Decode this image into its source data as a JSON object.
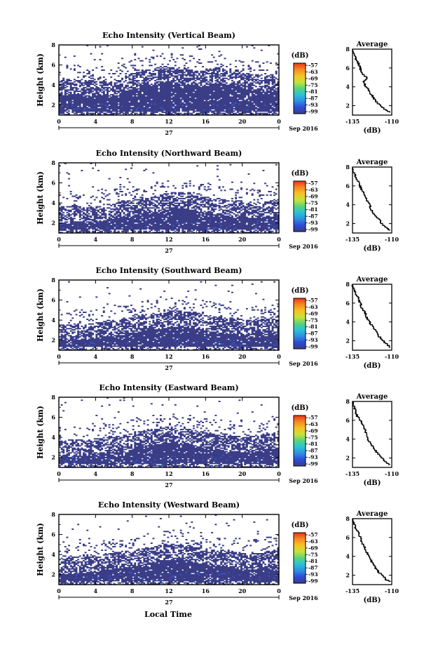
{
  "figure": {
    "xlabel": "Local Time",
    "date_label": "Sep 2016",
    "day_label": "27",
    "ylabel": "Height (km)",
    "colorbar_unit": "(dB)",
    "avg_title": "Average",
    "avg_xlabel": "(dB)"
  },
  "colorbar": {
    "labels": [
      "-57",
      "-63",
      "-69",
      "-75",
      "-81",
      "-87",
      "-93",
      "-99"
    ],
    "colors": [
      "#e8341c",
      "#f58a22",
      "#f6c324",
      "#c8e23a",
      "#5bd37a",
      "#28c3d8",
      "#2f8fe0",
      "#2c4bd8",
      "#3a3d86"
    ]
  },
  "chart_data": [
    {
      "type": "heatmap",
      "title": "Echo Intensity (Vertical Beam)",
      "xlabel": "Local Time",
      "ylabel": "Height (km)",
      "xlim": [
        0,
        24
      ],
      "ylim": [
        1,
        8
      ],
      "x_ticks": [
        "0",
        "4",
        "8",
        "12",
        "16",
        "20",
        "0"
      ],
      "y_ticks": [
        "2",
        "4",
        "6",
        "8"
      ],
      "colorbar_range": [
        -99,
        -57
      ],
      "echo_top_km": [
        4.5,
        4.7,
        4.6,
        4.4,
        4.6,
        4.5,
        4.3,
        4.8,
        5.2,
        5.4,
        5.6,
        5.8,
        5.9,
        5.7,
        5.6,
        5.4,
        5.5,
        5.8,
        5.7,
        5.5,
        5.3,
        5.1,
        5.0,
        4.9,
        4.8
      ],
      "average": {
        "xlim": [
          -135,
          -110
        ],
        "x_ticks": [
          "-135",
          "-110"
        ],
        "y_ticks": [
          "2",
          "4",
          "6",
          "8"
        ],
        "height_km": [
          1.3,
          1.5,
          2.0,
          2.5,
          3.0,
          3.5,
          4.0,
          4.5,
          5.0,
          5.5,
          6.0,
          6.5,
          7.0,
          7.5,
          8.0
        ],
        "db": [
          -111,
          -113,
          -117,
          -120,
          -122,
          -124,
          -126,
          -128,
          -126,
          -129,
          -130,
          -131,
          -133,
          -134,
          -135
        ]
      }
    },
    {
      "type": "heatmap",
      "title": "Echo Intensity (Northward Beam)",
      "xlabel": "Local Time",
      "ylabel": "Height (km)",
      "xlim": [
        0,
        24
      ],
      "ylim": [
        1,
        8
      ],
      "x_ticks": [
        "0",
        "4",
        "8",
        "12",
        "16",
        "20",
        "0"
      ],
      "y_ticks": [
        "2",
        "4",
        "6",
        "8"
      ],
      "colorbar_range": [
        -99,
        -57
      ],
      "echo_top_km": [
        3.6,
        3.8,
        3.7,
        3.5,
        3.6,
        3.9,
        4.0,
        4.2,
        4.3,
        4.4,
        4.6,
        4.8,
        5.0,
        5.1,
        5.0,
        4.8,
        4.6,
        4.5,
        4.4,
        4.3,
        4.2,
        4.1,
        4.0,
        4.2,
        4.5
      ],
      "average": {
        "xlim": [
          -135,
          -110
        ],
        "x_ticks": [
          "-135",
          "-110"
        ],
        "y_ticks": [
          "2",
          "4",
          "6",
          "8"
        ],
        "height_km": [
          1.3,
          1.5,
          2.0,
          2.5,
          3.0,
          3.5,
          4.0,
          4.5,
          5.0,
          5.5,
          6.0,
          6.5,
          7.0,
          7.5,
          8.0
        ],
        "db": [
          -111,
          -113,
          -116,
          -118,
          -121,
          -123,
          -124,
          -126,
          -127,
          -129,
          -130,
          -131,
          -133,
          -134,
          -135
        ]
      }
    },
    {
      "type": "heatmap",
      "title": "Echo Intensity (Southward Beam)",
      "xlabel": "Local Time",
      "ylabel": "Height (km)",
      "xlim": [
        0,
        24
      ],
      "ylim": [
        1,
        8
      ],
      "x_ticks": [
        "0",
        "4",
        "8",
        "12",
        "16",
        "20",
        "0"
      ],
      "y_ticks": [
        "2",
        "4",
        "6",
        "8"
      ],
      "colorbar_range": [
        -99,
        -57
      ],
      "echo_top_km": [
        3.5,
        3.6,
        3.7,
        3.6,
        3.8,
        3.9,
        4.0,
        4.1,
        4.3,
        4.5,
        4.6,
        4.7,
        4.9,
        5.0,
        4.9,
        4.8,
        4.6,
        4.4,
        4.3,
        4.2,
        4.1,
        4.0,
        4.1,
        4.3,
        4.4
      ],
      "average": {
        "xlim": [
          -135,
          -110
        ],
        "x_ticks": [
          "-135",
          "-110"
        ],
        "y_ticks": [
          "2",
          "4",
          "6",
          "8"
        ],
        "height_km": [
          1.3,
          1.5,
          2.0,
          2.5,
          3.0,
          3.5,
          4.0,
          4.5,
          5.0,
          5.5,
          6.0,
          6.5,
          7.0,
          7.5,
          8.0
        ],
        "db": [
          -111,
          -112,
          -115,
          -118,
          -120,
          -122,
          -124,
          -126,
          -127,
          -129,
          -130,
          -131,
          -133,
          -134,
          -135
        ]
      }
    },
    {
      "type": "heatmap",
      "title": "Echo Intensity (Eastward Beam)",
      "xlabel": "Local Time",
      "ylabel": "Height (km)",
      "xlim": [
        0,
        24
      ],
      "ylim": [
        1,
        8
      ],
      "x_ticks": [
        "0",
        "4",
        "8",
        "12",
        "16",
        "20",
        "0"
      ],
      "y_ticks": [
        "2",
        "4",
        "6",
        "8"
      ],
      "colorbar_range": [
        -99,
        -57
      ],
      "echo_top_km": [
        3.7,
        3.6,
        3.8,
        3.7,
        3.9,
        4.0,
        4.1,
        4.2,
        4.4,
        4.6,
        4.8,
        4.9,
        5.1,
        5.0,
        4.9,
        4.7,
        4.5,
        4.4,
        4.3,
        4.2,
        4.1,
        4.0,
        4.2,
        4.4,
        4.6
      ],
      "average": {
        "xlim": [
          -135,
          -110
        ],
        "x_ticks": [
          "-135",
          "-110"
        ],
        "y_ticks": [
          "2",
          "4",
          "6",
          "8"
        ],
        "height_km": [
          1.3,
          1.5,
          2.0,
          2.5,
          3.0,
          3.5,
          4.0,
          4.5,
          5.0,
          5.5,
          6.0,
          6.5,
          7.0,
          7.5,
          8.0
        ],
        "db": [
          -111,
          -113,
          -116,
          -119,
          -121,
          -123,
          -125,
          -126,
          -127,
          -128,
          -130,
          -132,
          -133,
          -134,
          -135
        ]
      }
    },
    {
      "type": "heatmap",
      "title": "Echo Intensity (Westward Beam)",
      "xlabel": "Local Time",
      "ylabel": "Height (km)",
      "xlim": [
        0,
        24
      ],
      "ylim": [
        1,
        8
      ],
      "x_ticks": [
        "0",
        "4",
        "8",
        "12",
        "16",
        "20",
        "0"
      ],
      "y_ticks": [
        "2",
        "4",
        "6",
        "8"
      ],
      "colorbar_range": [
        -99,
        -57
      ],
      "echo_top_km": [
        3.6,
        3.7,
        3.8,
        3.7,
        3.9,
        4.0,
        4.2,
        4.3,
        4.4,
        4.6,
        4.8,
        4.9,
        5.0,
        5.1,
        5.0,
        4.8,
        4.6,
        4.5,
        4.4,
        4.3,
        4.2,
        4.1,
        4.2,
        4.4,
        4.6
      ],
      "average": {
        "xlim": [
          -135,
          -110
        ],
        "x_ticks": [
          "-135",
          "-110"
        ],
        "y_ticks": [
          "2",
          "4",
          "6",
          "8"
        ],
        "height_km": [
          1.3,
          1.5,
          2.0,
          2.5,
          3.0,
          3.5,
          4.0,
          4.5,
          5.0,
          5.5,
          6.0,
          6.5,
          7.0,
          7.5,
          8.0
        ],
        "db": [
          -111,
          -113,
          -116,
          -119,
          -121,
          -123,
          -124,
          -126,
          -127,
          -129,
          -130,
          -131,
          -133,
          -134,
          -135
        ]
      }
    }
  ]
}
